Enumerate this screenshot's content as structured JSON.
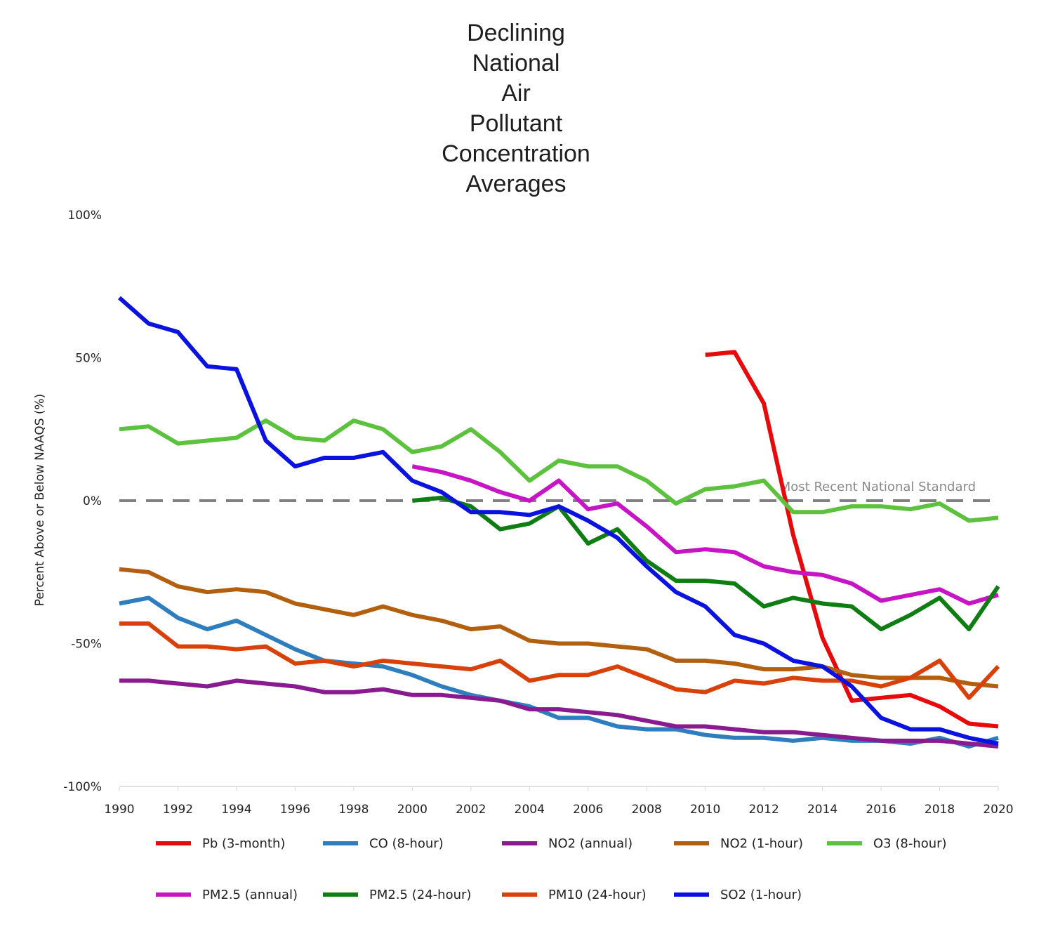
{
  "chart_data": {
    "type": "line",
    "title_lines": [
      "Declining",
      "National",
      "Air",
      "Pollutant",
      "Concentration",
      "Averages"
    ],
    "ylabel": "Percent Above or Below NAAQS (%)",
    "xlabel": "",
    "xlim": [
      1990,
      2020
    ],
    "ylim": [
      -100,
      100
    ],
    "x_ticks": [
      "1990",
      "1992",
      "1994",
      "1996",
      "1998",
      "2000",
      "2002",
      "2004",
      "2006",
      "2008",
      "2010",
      "2012",
      "2014",
      "2016",
      "2018",
      "2020"
    ],
    "y_ticks": [
      {
        "value": 100,
        "label": "100%"
      },
      {
        "value": 50,
        "label": "50%"
      },
      {
        "value": 0,
        "label": "0%"
      },
      {
        "value": -50,
        "label": "-50%"
      },
      {
        "value": -100,
        "label": "-100%"
      }
    ],
    "grid": false,
    "legend_position": "bottom",
    "reference_line": {
      "value": 0,
      "label": "Most Recent National Standard",
      "color": "#808080",
      "style": "dashed"
    },
    "series": [
      {
        "name": "Pb (3-month)",
        "color": "#e8090b",
        "x": [
          2010,
          2011,
          2012,
          2013,
          2014,
          2015,
          2016,
          2017,
          2018,
          2019,
          2020
        ],
        "values": [
          51,
          52,
          34,
          -12,
          -48,
          -70,
          -69,
          -68,
          -72,
          -78,
          -79
        ]
      },
      {
        "name": "CO (8-hour)",
        "color": "#2e7ebf",
        "x": [
          1990,
          1991,
          1992,
          1993,
          1994,
          1995,
          1996,
          1997,
          1998,
          1999,
          2000,
          2001,
          2002,
          2003,
          2004,
          2005,
          2006,
          2007,
          2008,
          2009,
          2010,
          2011,
          2012,
          2013,
          2014,
          2015,
          2016,
          2017,
          2018,
          2019,
          2020
        ],
        "values": [
          -36,
          -34,
          -41,
          -45,
          -42,
          -47,
          -52,
          -56,
          -57,
          -58,
          -61,
          -65,
          -68,
          -70,
          -72,
          -76,
          -76,
          -79,
          -80,
          -80,
          -82,
          -83,
          -83,
          -84,
          -83,
          -84,
          -84,
          -85,
          -83,
          -86,
          -83
        ]
      },
      {
        "name": "NO2 (annual)",
        "color": "#8a1a8f",
        "x": [
          1990,
          1991,
          1992,
          1993,
          1994,
          1995,
          1996,
          1997,
          1998,
          1999,
          2000,
          2001,
          2002,
          2003,
          2004,
          2005,
          2006,
          2007,
          2008,
          2009,
          2010,
          2011,
          2012,
          2013,
          2014,
          2015,
          2016,
          2017,
          2018,
          2019,
          2020
        ],
        "values": [
          -63,
          -63,
          -64,
          -65,
          -63,
          -64,
          -65,
          -67,
          -67,
          -66,
          -68,
          -68,
          -69,
          -70,
          -73,
          -73,
          -74,
          -75,
          -77,
          -79,
          -79,
          -80,
          -81,
          -81,
          -82,
          -83,
          -84,
          -84,
          -84,
          -85,
          -86
        ]
      },
      {
        "name": "NO2 (1-hour)",
        "color": "#b2600f",
        "x": [
          1990,
          1991,
          1992,
          1993,
          1994,
          1995,
          1996,
          1997,
          1998,
          1999,
          2000,
          2001,
          2002,
          2003,
          2004,
          2005,
          2006,
          2007,
          2008,
          2009,
          2010,
          2011,
          2012,
          2013,
          2014,
          2015,
          2016,
          2017,
          2018,
          2019,
          2020
        ],
        "values": [
          -24,
          -25,
          -30,
          -32,
          -31,
          -32,
          -36,
          -38,
          -40,
          -37,
          -40,
          -42,
          -45,
          -44,
          -49,
          -50,
          -50,
          -51,
          -52,
          -56,
          -56,
          -57,
          -59,
          -59,
          -58,
          -61,
          -62,
          -62,
          -62,
          -64,
          -65
        ]
      },
      {
        "name": "O3 (8-hour)",
        "color": "#5cc23d",
        "x": [
          1990,
          1991,
          1992,
          1993,
          1994,
          1995,
          1996,
          1997,
          1998,
          1999,
          2000,
          2001,
          2002,
          2003,
          2004,
          2005,
          2006,
          2007,
          2008,
          2009,
          2010,
          2011,
          2012,
          2013,
          2014,
          2015,
          2016,
          2017,
          2018,
          2019,
          2020
        ],
        "values": [
          25,
          26,
          20,
          21,
          22,
          28,
          22,
          21,
          28,
          25,
          17,
          19,
          25,
          17,
          7,
          14,
          12,
          12,
          7,
          -1,
          4,
          5,
          7,
          -4,
          -4,
          -2,
          -2,
          -3,
          -1,
          -7,
          -6
        ]
      },
      {
        "name": "PM2.5 (annual)",
        "color": "#c714c4",
        "x": [
          2000,
          2001,
          2002,
          2003,
          2004,
          2005,
          2006,
          2007,
          2008,
          2009,
          2010,
          2011,
          2012,
          2013,
          2014,
          2015,
          2016,
          2017,
          2018,
          2019,
          2020
        ],
        "values": [
          12,
          10,
          7,
          3,
          0,
          7,
          -3,
          -1,
          -9,
          -18,
          -17,
          -18,
          -23,
          -25,
          -26,
          -29,
          -35,
          -33,
          -31,
          -36,
          -33
        ]
      },
      {
        "name": "PM2.5 (24-hour)",
        "color": "#0e7d12",
        "x": [
          2000,
          2001,
          2002,
          2003,
          2004,
          2005,
          2006,
          2007,
          2008,
          2009,
          2010,
          2011,
          2012,
          2013,
          2014,
          2015,
          2016,
          2017,
          2018,
          2019,
          2020
        ],
        "values": [
          0,
          1,
          -2,
          -10,
          -8,
          -2,
          -15,
          -10,
          -21,
          -28,
          -28,
          -29,
          -37,
          -34,
          -36,
          -37,
          -45,
          -40,
          -34,
          -45,
          -30
        ]
      },
      {
        "name": "PM10 (24-hour)",
        "color": "#d9410b",
        "x": [
          1990,
          1991,
          1992,
          1993,
          1994,
          1995,
          1996,
          1997,
          1998,
          1999,
          2000,
          2001,
          2002,
          2003,
          2004,
          2005,
          2006,
          2007,
          2008,
          2009,
          2010,
          2011,
          2012,
          2013,
          2014,
          2015,
          2016,
          2017,
          2018,
          2019,
          2020
        ],
        "values": [
          -43,
          -43,
          -51,
          -51,
          -52,
          -51,
          -57,
          -56,
          -58,
          -56,
          -57,
          -58,
          -59,
          -56,
          -63,
          -61,
          -61,
          -58,
          -62,
          -66,
          -67,
          -63,
          -64,
          -62,
          -63,
          -63,
          -65,
          -62,
          -56,
          -69,
          -58
        ]
      },
      {
        "name": "SO2 (1-hour)",
        "color": "#0a12e0",
        "x": [
          1990,
          1991,
          1992,
          1993,
          1994,
          1995,
          1996,
          1997,
          1998,
          1999,
          2000,
          2001,
          2002,
          2003,
          2004,
          2005,
          2006,
          2007,
          2008,
          2009,
          2010,
          2011,
          2012,
          2013,
          2014,
          2015,
          2016,
          2017,
          2018,
          2019,
          2020
        ],
        "values": [
          71,
          62,
          59,
          47,
          46,
          21,
          12,
          15,
          15,
          17,
          7,
          3,
          -4,
          -4,
          -5,
          -2,
          -7,
          -13,
          -23,
          -32,
          -37,
          -47,
          -50,
          -56,
          -58,
          -65,
          -76,
          -80,
          -80,
          -83,
          -85
        ]
      }
    ]
  }
}
